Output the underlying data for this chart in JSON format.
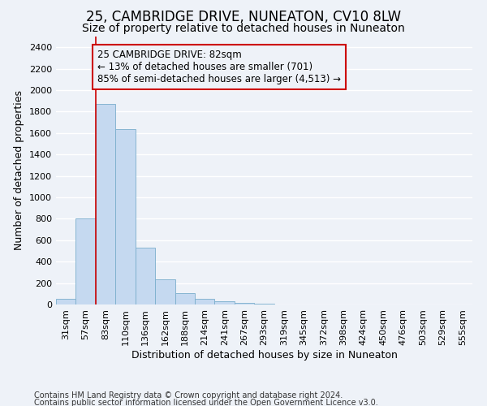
{
  "title": "25, CAMBRIDGE DRIVE, NUNEATON, CV10 8LW",
  "subtitle": "Size of property relative to detached houses in Nuneaton",
  "xlabel": "Distribution of detached houses by size in Nuneaton",
  "ylabel": "Number of detached properties",
  "categories": [
    "31sqm",
    "57sqm",
    "83sqm",
    "110sqm",
    "136sqm",
    "162sqm",
    "188sqm",
    "214sqm",
    "241sqm",
    "267sqm",
    "293sqm",
    "319sqm",
    "345sqm",
    "372sqm",
    "398sqm",
    "424sqm",
    "450sqm",
    "476sqm",
    "503sqm",
    "529sqm",
    "555sqm"
  ],
  "values": [
    50,
    800,
    1870,
    1640,
    530,
    235,
    105,
    50,
    30,
    18,
    5,
    0,
    0,
    0,
    0,
    0,
    0,
    0,
    0,
    0,
    0
  ],
  "bar_color": "#c5d9f0",
  "bar_edge_color": "#7aaecc",
  "highlight_index": 2,
  "highlight_line_color": "#cc0000",
  "annotation_text": "25 CAMBRIDGE DRIVE: 82sqm\n← 13% of detached houses are smaller (701)\n85% of semi-detached houses are larger (4,513) →",
  "annotation_box_color": "#cc0000",
  "ylim": [
    0,
    2500
  ],
  "yticks": [
    0,
    200,
    400,
    600,
    800,
    1000,
    1200,
    1400,
    1600,
    1800,
    2000,
    2200,
    2400
  ],
  "footer_line1": "Contains HM Land Registry data © Crown copyright and database right 2024.",
  "footer_line2": "Contains public sector information licensed under the Open Government Licence v3.0.",
  "background_color": "#eef2f8",
  "grid_color": "#ffffff",
  "title_fontsize": 12,
  "subtitle_fontsize": 10,
  "axis_label_fontsize": 9,
  "tick_fontsize": 8,
  "annotation_fontsize": 8.5,
  "footer_fontsize": 7
}
